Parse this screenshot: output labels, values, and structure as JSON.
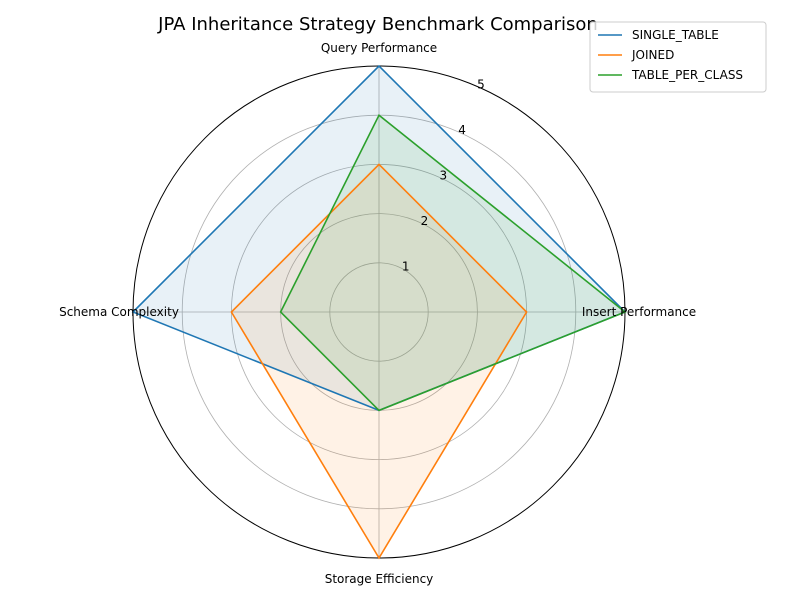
{
  "chart_data": {
    "type": "radar",
    "title": "JPA Inheritance Strategy Benchmark Comparison",
    "axes": [
      "Query Performance",
      "Insert Performance",
      "Storage Efficiency",
      "Schema Complexity"
    ],
    "rlim": [
      0,
      5
    ],
    "rticks": [
      "1",
      "2",
      "3",
      "4",
      "5"
    ],
    "grid": true,
    "legend_position": "top-right",
    "series": [
      {
        "name": "SINGLE_TABLE",
        "values": [
          5,
          5,
          2,
          5
        ],
        "color": "#1f77b4"
      },
      {
        "name": "JOINED",
        "values": [
          3,
          3,
          5,
          3
        ],
        "color": "#ff7f0e"
      },
      {
        "name": "TABLE_PER_CLASS",
        "values": [
          4,
          5,
          2,
          2
        ],
        "color": "#2ca02c"
      }
    ]
  }
}
